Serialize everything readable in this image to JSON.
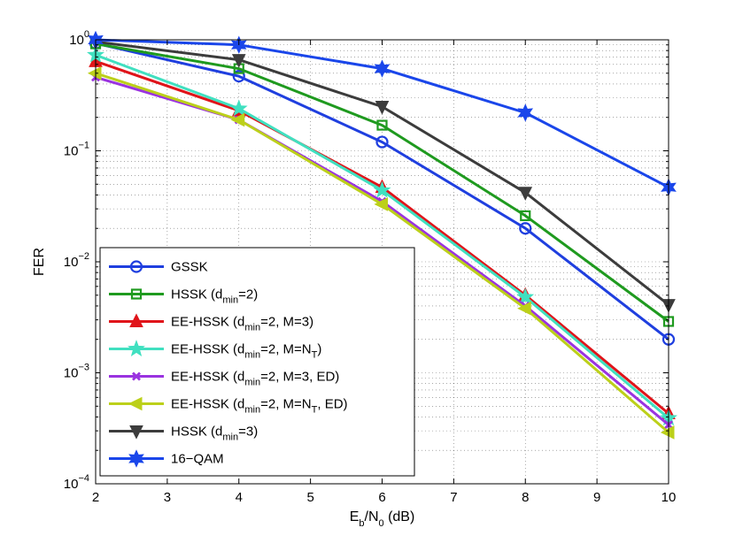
{
  "chart_data": {
    "type": "line",
    "xscale": "linear",
    "yscale": "log",
    "xlabel": {
      "main": "E",
      "sub1": "b",
      "mid": "/N",
      "sub2": "0",
      "tail": " (dB)"
    },
    "ylabel": "FER",
    "xlim": [
      2,
      10
    ],
    "ylim": [
      0.0001,
      1
    ],
    "xticks": [
      "2",
      "3",
      "4",
      "5",
      "6",
      "7",
      "8",
      "9",
      "10"
    ],
    "yticks": [
      {
        "base": "10",
        "exp": "0"
      },
      {
        "base": "10",
        "exp": "-1"
      },
      {
        "base": "10",
        "exp": "-2"
      },
      {
        "base": "10",
        "exp": "-3"
      },
      {
        "base": "10",
        "exp": "-4"
      }
    ],
    "grid": true,
    "legend_position": "bottom-left",
    "x": [
      2,
      4,
      6,
      8,
      10
    ],
    "series": [
      {
        "name": "GSSK",
        "legend": [
          {
            "t": "GSSK"
          }
        ],
        "color": "#1f3fdf",
        "marker": "circle",
        "values": [
          0.93,
          0.47,
          0.12,
          0.02,
          0.002
        ]
      },
      {
        "name": "HSSK (dmin=2)",
        "legend": [
          {
            "t": "HSSK (d"
          },
          {
            "t": "min",
            "sub": true
          },
          {
            "t": "=2)"
          }
        ],
        "color": "#1f9a1f",
        "marker": "square",
        "values": [
          0.92,
          0.55,
          0.17,
          0.026,
          0.0029
        ]
      },
      {
        "name": "EE-HSSK (dmin=2, M=3)",
        "legend": [
          {
            "t": "EE-HSSK (d"
          },
          {
            "t": "min",
            "sub": true
          },
          {
            "t": "=2, M=3)"
          }
        ],
        "color": "#e0141a",
        "marker": "triangle-up",
        "values": [
          0.64,
          0.23,
          0.047,
          0.005,
          0.00043
        ]
      },
      {
        "name": "EE-HSSK (dmin=2, M=NT)",
        "legend": [
          {
            "t": "EE-HSSK (d"
          },
          {
            "t": "min",
            "sub": true
          },
          {
            "t": "=2, M=N"
          },
          {
            "t": "T",
            "sub": true
          },
          {
            "t": ")"
          }
        ],
        "color": "#40e0c0",
        "marker": "star",
        "values": [
          0.73,
          0.24,
          0.044,
          0.0048,
          0.00039
        ]
      },
      {
        "name": "EE-HSSK (dmin=2, M=3, ED)",
        "legend": [
          {
            "t": "EE-HSSK (d"
          },
          {
            "t": "min",
            "sub": true
          },
          {
            "t": "=2, M=3, ED)"
          }
        ],
        "color": "#9a33e0",
        "marker": "x",
        "values": [
          0.46,
          0.19,
          0.035,
          0.004,
          0.00034
        ]
      },
      {
        "name": "EE-HSSK (dmin=2, M=NT, ED)",
        "legend": [
          {
            "t": "EE-HSSK (d"
          },
          {
            "t": "min",
            "sub": true
          },
          {
            "t": "=2, M=N"
          },
          {
            "t": "T",
            "sub": true
          },
          {
            "t": ", ED)"
          }
        ],
        "color": "#bcd01a",
        "marker": "triangle-left",
        "values": [
          0.5,
          0.19,
          0.033,
          0.0038,
          0.00029
        ]
      },
      {
        "name": "HSSK (dmin=3)",
        "legend": [
          {
            "t": "HSSK (d"
          },
          {
            "t": "min",
            "sub": true
          },
          {
            "t": "=3)"
          }
        ],
        "color": "#3c3c3c",
        "marker": "triangle-down",
        "values": [
          0.96,
          0.66,
          0.25,
          0.042,
          0.0041
        ]
      },
      {
        "name": "16-QAM",
        "legend": [
          {
            "t": "16−QAM"
          }
        ],
        "color": "#1a46ea",
        "marker": "hexagram",
        "values": [
          1.0,
          0.9,
          0.55,
          0.22,
          0.047
        ]
      }
    ]
  }
}
